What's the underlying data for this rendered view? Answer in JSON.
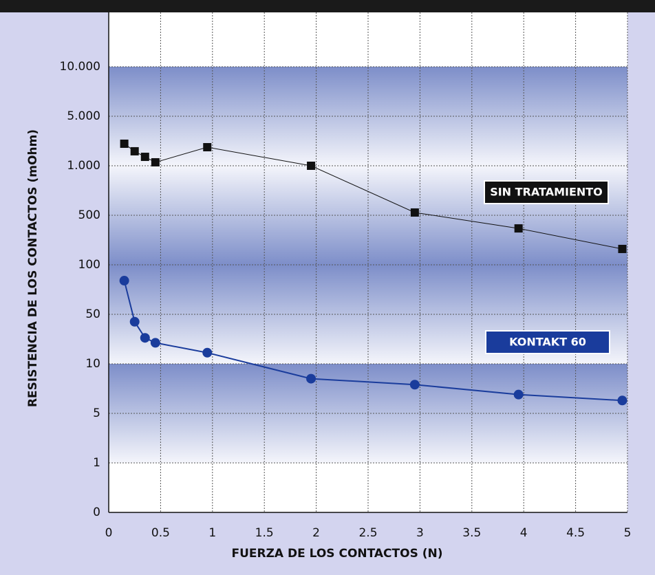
{
  "chart_data": {
    "type": "line",
    "xlabel": "FUERZA DE LOS CONTACTOS (N)",
    "ylabel": "RESISTENCIA DE LOS CONTACTOS (mOhm)",
    "xlim": [
      0,
      5
    ],
    "xticks": [
      0,
      0.5,
      1,
      1.5,
      2,
      2.5,
      3,
      3.5,
      4,
      4.5,
      5
    ],
    "ylim": [
      0,
      10000
    ],
    "yticks": [
      0,
      1,
      5,
      10,
      50,
      100,
      500,
      {
        "value": 1000,
        "label": "1.000"
      },
      {
        "value": 5000,
        "label": "5.000"
      },
      {
        "value": 10000,
        "label": "10.000"
      }
    ],
    "grid": true,
    "series": [
      {
        "name": "SIN TRATAMIENTO",
        "color": "#111111",
        "marker": "square",
        "x": [
          0.15,
          0.25,
          0.35,
          0.45,
          0.95,
          1.95,
          2.95,
          3.95,
          4.95
        ],
        "values": [
          2780,
          2170,
          1720,
          1280,
          2500,
          1000,
          528,
          394,
          228
        ]
      },
      {
        "name": "KONTAKT 60",
        "color": "#1a3c9c",
        "marker": "circle",
        "x": [
          0.15,
          0.25,
          0.35,
          0.45,
          0.95,
          1.95,
          2.95,
          3.95,
          4.95
        ],
        "values": [
          84,
          44,
          31,
          27,
          19,
          8.5,
          7.9,
          6.9,
          6.3
        ]
      }
    ]
  }
}
